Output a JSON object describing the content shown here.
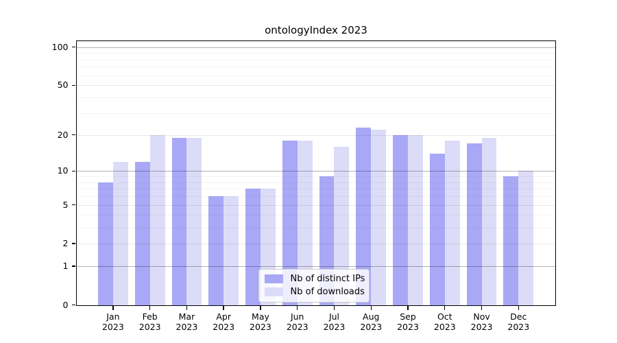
{
  "chart_data": {
    "type": "bar",
    "title": "ontologyIndex 2023",
    "categories": [
      "Jan 2023",
      "Feb 2023",
      "Mar 2023",
      "Apr 2023",
      "May 2023",
      "Jun 2023",
      "Jul 2023",
      "Aug 2023",
      "Sep 2023",
      "Oct 2023",
      "Nov 2023",
      "Dec 2023"
    ],
    "series": [
      {
        "name": "Nb of distinct IPs",
        "color": "#a8a8f6",
        "values": [
          8,
          12,
          19,
          6,
          7,
          18,
          9,
          23,
          20,
          14,
          17,
          9
        ]
      },
      {
        "name": "Nb of downloads",
        "color": "#dcdcf8",
        "values": [
          12,
          20,
          19,
          6,
          7,
          18,
          16,
          22,
          20,
          18,
          19,
          10
        ]
      }
    ],
    "xlabel": "",
    "ylabel": "",
    "yscale": "log1p",
    "ylim": [
      0,
      112
    ],
    "y_ticks": [
      0,
      1,
      2,
      5,
      10,
      20,
      50,
      100
    ],
    "y_minor_gridlines": [
      3,
      4,
      6,
      7,
      8,
      9,
      30,
      40,
      60,
      70,
      80,
      90
    ],
    "y_decade_gridlines": [
      1,
      10,
      100
    ],
    "grid": true,
    "legend_position": "lower center"
  }
}
